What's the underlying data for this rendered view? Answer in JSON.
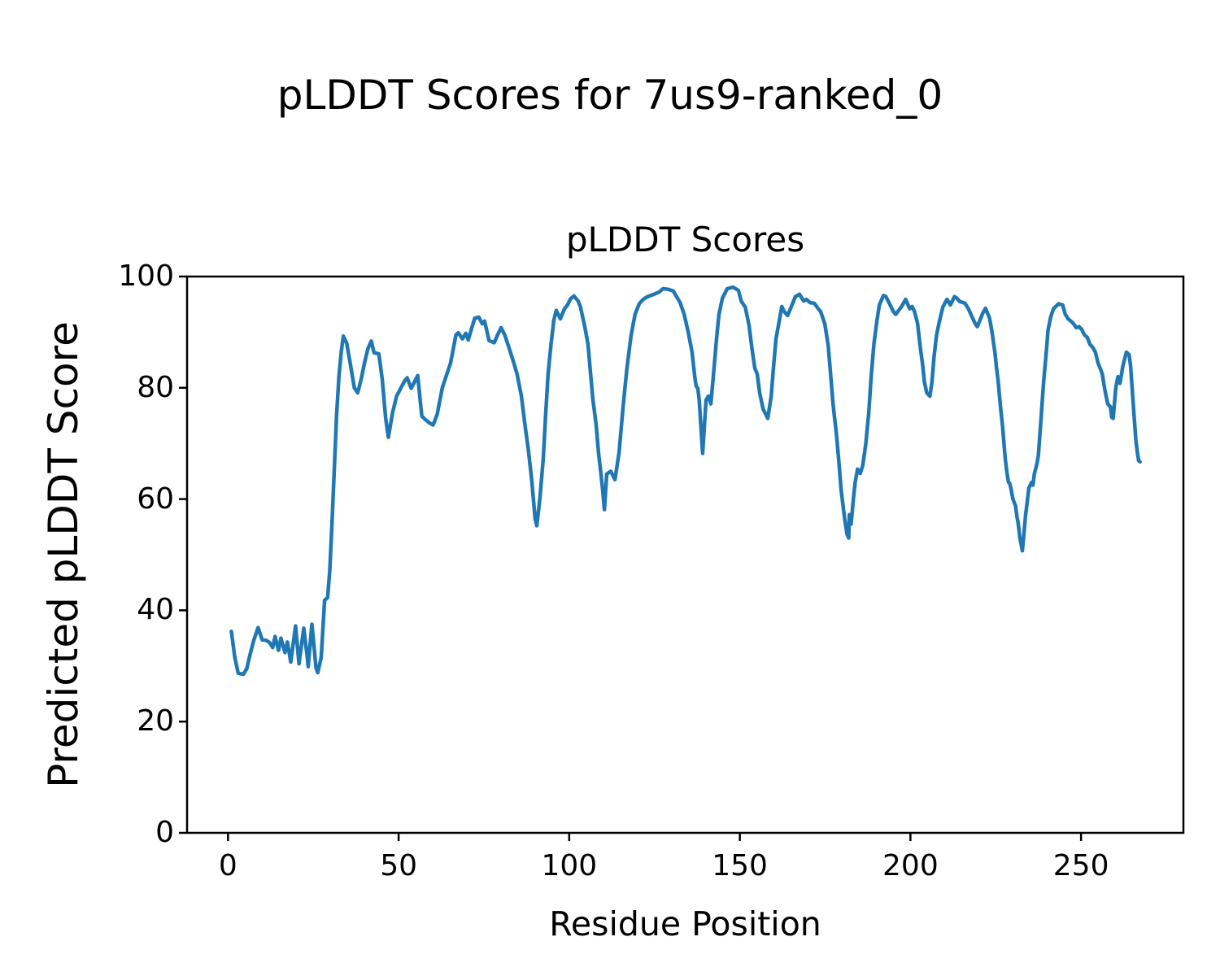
{
  "figure": {
    "suptitle": "pLDDT Scores for 7us9-ranked_0"
  },
  "chart_data": {
    "type": "line",
    "title": "pLDDT Scores",
    "xlabel": "Residue Position",
    "ylabel": "Predicted pLDDT Score",
    "x_ticks": [
      0,
      50,
      100,
      150,
      200,
      250
    ],
    "y_ticks": [
      0,
      20,
      40,
      60,
      80,
      100
    ],
    "xlim": [
      -12,
      280
    ],
    "ylim": [
      0,
      100
    ],
    "grid": false,
    "legend": "none",
    "line_color": "#1f77b4",
    "line_width": 4.5,
    "series": [
      {
        "name": "pLDDT",
        "x": [
          1,
          2,
          3,
          4.5,
          5.5,
          6.3,
          7.5,
          8.8,
          10,
          11.2,
          12.2,
          13.1,
          13.8,
          14.8,
          15.5,
          16.7,
          17.4,
          18.4,
          19.8,
          20.8,
          22.2,
          23.2,
          23.5,
          24.6,
          25.8,
          26.3,
          27.3,
          28.3,
          29.2,
          29.8,
          30.5,
          31.2,
          31.8,
          32.5,
          33.2,
          33.8,
          34.8,
          35.8,
          37,
          38,
          39,
          40,
          41,
          42,
          42.8,
          44.2,
          45.2,
          46.2,
          47,
          48.2,
          49.4,
          50.1,
          51.8,
          52.5,
          53.7,
          54.6,
          55.6,
          56.8,
          58,
          59,
          60.1,
          61.3,
          62.8,
          64,
          65.2,
          66.8,
          67.5,
          68.7,
          69.7,
          70.4,
          71.3,
          72.3,
          73.5,
          74.5,
          75.2,
          76.5,
          78,
          79,
          80,
          81.1,
          82.3,
          83.5,
          84.7,
          86,
          87,
          88,
          89,
          90,
          90.5,
          91.4,
          92.4,
          93.1,
          93.8,
          94.7,
          95.5,
          96.2,
          97.4,
          98.6,
          99.5,
          100.4,
          101.4,
          102.6,
          103.3,
          104.5,
          105.5,
          106.2,
          106.9,
          107.9,
          108.6,
          109.3,
          109.8,
          110.3,
          111,
          112.2,
          113.4,
          114.6,
          115.8,
          116.9,
          118.1,
          119.3,
          120.5,
          121.7,
          123,
          124.8,
          126.3,
          127.5,
          129,
          130.5,
          132.5,
          133.7,
          134.8,
          136,
          136.8,
          137.2,
          137.7,
          138.1,
          139.1,
          140.1,
          140.8,
          141.5,
          142.5,
          143.2,
          143.9,
          144.9,
          146.3,
          148,
          149.6,
          150.4,
          151.6,
          152.7,
          153.5,
          154.4,
          155.1,
          155.8,
          156.8,
          158.2,
          159.2,
          159.9,
          160.6,
          161.6,
          162.3,
          163,
          164,
          165.1,
          166.3,
          167.5,
          168.7,
          169.5,
          170.6,
          171.8,
          173,
          173.7,
          174.9,
          175.9,
          176.6,
          177.3,
          178.3,
          179,
          179.7,
          180.7,
          181.4,
          181.9,
          182.1,
          182.6,
          183.3,
          183.8,
          184.5,
          185.3,
          186,
          186.9,
          187.8,
          188.5,
          189.3,
          190.2,
          190.9,
          192.1,
          192.8,
          193.8,
          195,
          195.7,
          197.4,
          198.6,
          199.8,
          200.5,
          201.2,
          202.1,
          202.4,
          202.9,
          203.6,
          204.1,
          204.8,
          205.7,
          206.3,
          206.9,
          207.6,
          208.4,
          209.5,
          210.7,
          211.7,
          212.9,
          213.6,
          214.5,
          216,
          217,
          218,
          219,
          219.6,
          220.4,
          221.2,
          222,
          223.2,
          223.9,
          224.8,
          225.2,
          225.7,
          226.1,
          226.5,
          227,
          227.4,
          227.8,
          228.3,
          228.7,
          229.1,
          229.5,
          230,
          230.4,
          230.8,
          231.2,
          231.6,
          232.1,
          232.8,
          233.3,
          233.7,
          234.1,
          234.7,
          235.5,
          235.9,
          236.3,
          237.1,
          237.5,
          237.9,
          238.3,
          238.7,
          239.1,
          239.6,
          240,
          240.3,
          241.1,
          241.9,
          243.4,
          244.6,
          245.4,
          246.2,
          247,
          247.8,
          248.6,
          249.4,
          250.2,
          251,
          251.8,
          252.6,
          253.4,
          254.2,
          255,
          255.8,
          256.2,
          257,
          257.8,
          258.6,
          259,
          259.4,
          260.2,
          260.8,
          261.4,
          262.3,
          263.3,
          264.1,
          264.5,
          264.9,
          265.3,
          265.7,
          266.1,
          266.5,
          266.9,
          267.3
        ],
        "y": [
          36.2,
          31.5,
          28.7,
          28.5,
          29.5,
          31.7,
          34.5,
          36.9,
          34.7,
          34.6,
          34.2,
          33.3,
          35.3,
          32.8,
          35,
          32.4,
          34.3,
          30.7,
          37.2,
          30.4,
          36.8,
          31.7,
          29.9,
          37.5,
          29.6,
          28.8,
          31.5,
          41.8,
          42.3,
          47,
          56,
          66,
          75,
          82,
          86.5,
          89.3,
          88,
          84.5,
          80,
          79.1,
          81.5,
          84.5,
          87,
          88.4,
          86.3,
          86.1,
          81.5,
          74.5,
          71.1,
          75.5,
          78.5,
          79.3,
          81.3,
          81.8,
          79.9,
          81,
          82.2,
          74.9,
          74.2,
          73.7,
          73.3,
          75.2,
          80,
          82.2,
          84.4,
          89.5,
          89.9,
          88.8,
          89.8,
          88.6,
          90.5,
          92.5,
          92.7,
          91.5,
          92,
          88.5,
          88.1,
          89.5,
          90.8,
          89.5,
          87.3,
          85,
          82.5,
          78.5,
          73.5,
          69,
          63.5,
          56.5,
          55.2,
          60.1,
          67.4,
          75.2,
          82.5,
          88,
          92.2,
          93.9,
          92.4,
          94.2,
          94.9,
          96,
          96.5,
          95.6,
          94.5,
          91.2,
          87.9,
          82.9,
          78.1,
          73.3,
          68.3,
          64.5,
          61.6,
          58.1,
          64.5,
          65,
          63.5,
          68.3,
          76.6,
          83.5,
          89.3,
          93.2,
          95.1,
          95.9,
          96.4,
          96.8,
          97.2,
          97.8,
          97.7,
          97.4,
          95.3,
          93.2,
          90.2,
          86.4,
          82,
          80.3,
          79.9,
          77.8,
          68.2,
          77.8,
          78.5,
          77.1,
          84,
          89,
          93.2,
          96.1,
          97.8,
          98.1,
          97.5,
          95.6,
          94.5,
          91.2,
          87.3,
          83.5,
          82.5,
          79.1,
          76.2,
          74.5,
          78.5,
          84,
          88.8,
          92.2,
          94.6,
          93.7,
          93,
          94.6,
          96.4,
          96.8,
          95.6,
          95.9,
          95.3,
          95.2,
          94.2,
          93.7,
          91.5,
          87.6,
          82.5,
          77.1,
          71.8,
          66.9,
          61.6,
          56.6,
          53.7,
          53,
          57.2,
          55.5,
          60.1,
          63,
          65.4,
          64.6,
          66,
          69.8,
          75.6,
          82,
          87.9,
          92.2,
          94.9,
          96.6,
          96.4,
          95.2,
          93.7,
          93.2,
          94.6,
          95.9,
          94.2,
          94.6,
          93.7,
          91.5,
          89.8,
          87.3,
          84,
          81,
          79.1,
          78.5,
          81,
          85.4,
          89.3,
          91.7,
          94.5,
          95.9,
          94.9,
          96.4,
          96.1,
          95.5,
          95.2,
          94.2,
          92.8,
          91.5,
          91,
          92.2,
          93.4,
          94.3,
          92.5,
          90.1,
          86.2,
          83.7,
          81.3,
          78.5,
          75.9,
          73,
          70.1,
          67.2,
          64.7,
          63.1,
          62.8,
          61.8,
          60.1,
          59.4,
          58.8,
          56.9,
          55.5,
          53,
          50.7,
          54,
          56.9,
          58.8,
          62,
          63,
          62.5,
          64.5,
          66.4,
          67.9,
          71.3,
          74.7,
          78.1,
          81.5,
          84.9,
          87.8,
          90.3,
          92.7,
          94.2,
          95.1,
          94.9,
          93.2,
          92.4,
          92,
          91.5,
          90.8,
          91,
          90.5,
          89.5,
          89.1,
          87.8,
          87.3,
          86.4,
          84.4,
          83.2,
          82.5,
          79.6,
          77.1,
          76.6,
          74.7,
          74.5,
          80,
          82,
          80.8,
          84,
          86.4,
          85.9,
          84,
          80.5,
          77.1,
          73.7,
          70.3,
          68.4,
          66.9,
          66.7
        ]
      }
    ]
  }
}
